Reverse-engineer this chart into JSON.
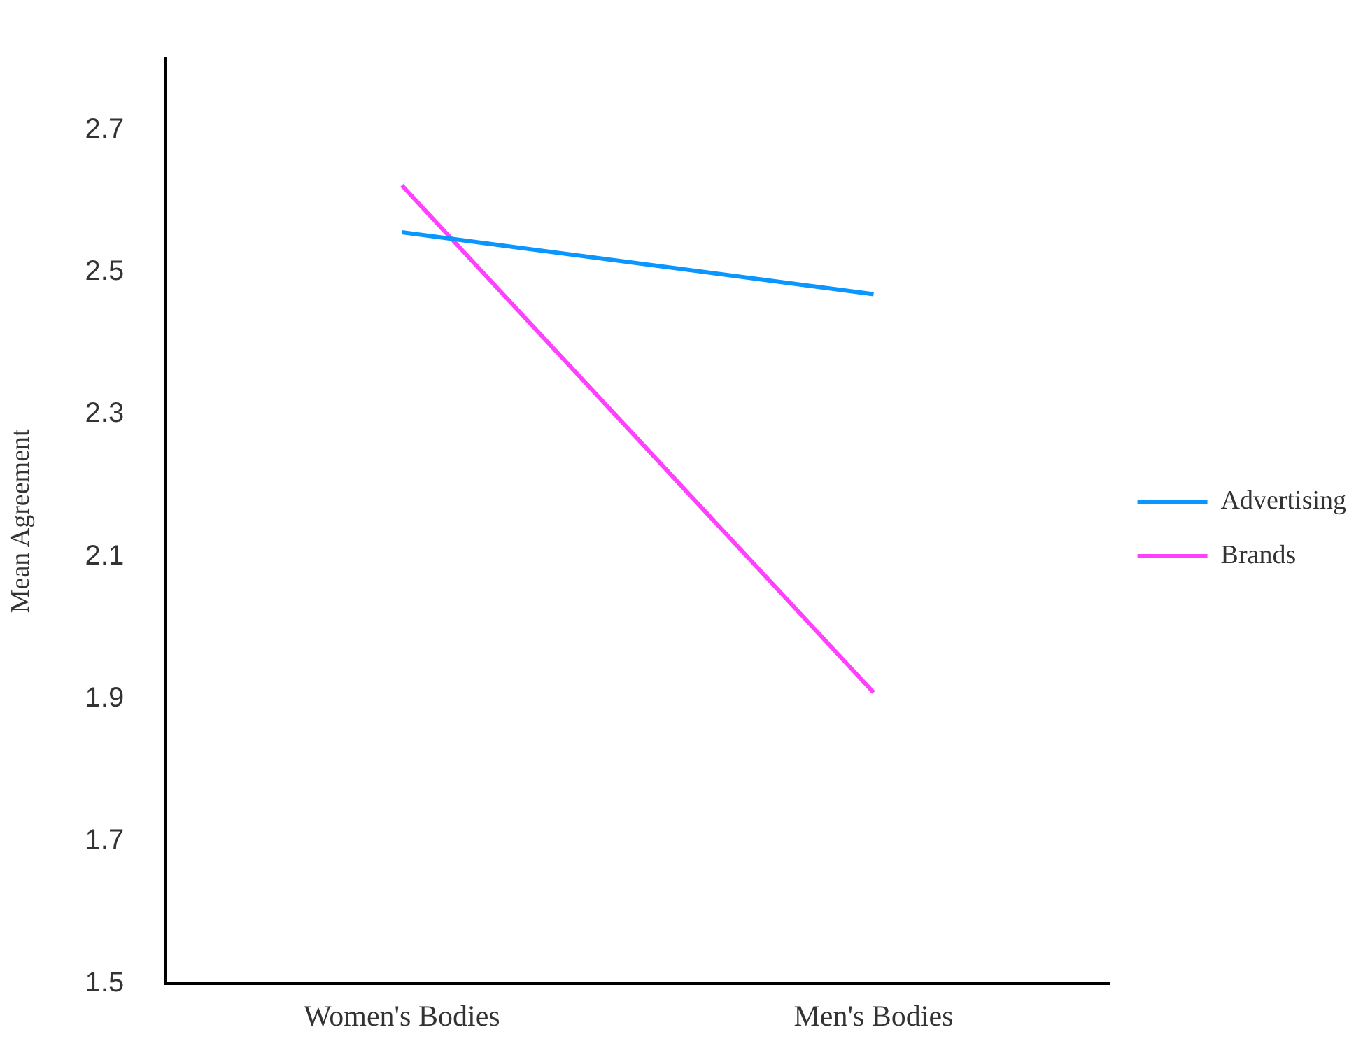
{
  "chart_data": {
    "type": "line",
    "ylabel": "Mean Agreement",
    "categories": [
      "Women's Bodies",
      "Men's Bodies"
    ],
    "series": [
      {
        "name": "Advertising",
        "color": "#0a96ff",
        "values": [
          2.556,
          2.469
        ]
      },
      {
        "name": "Brands",
        "color": "#ff40ff",
        "values": [
          2.622,
          1.909
        ]
      }
    ],
    "ylim": [
      1.5,
      2.8
    ],
    "yticks": [
      1.5,
      1.7,
      1.9,
      2.1,
      2.3,
      2.5,
      2.7
    ],
    "grid": false,
    "legend": "right",
    "marker": "none",
    "line_style": "solid"
  }
}
